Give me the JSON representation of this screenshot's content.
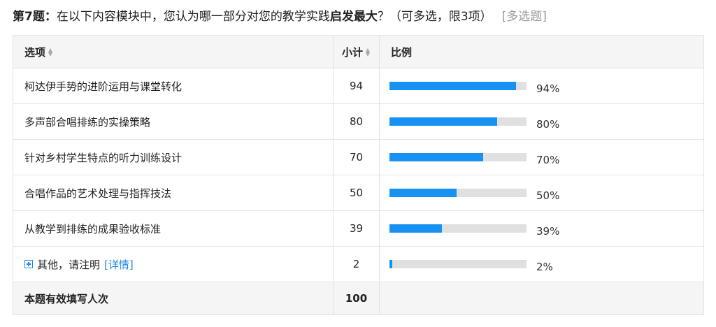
{
  "question": {
    "number": "第7题：",
    "text_before": "在以下内容模块中，您认为哪一部分对您的教学实践",
    "text_bold": "启发最大",
    "text_after": "？（可多选，限3项）",
    "type_tag": "[多选题]"
  },
  "table": {
    "headers": {
      "option": "选项",
      "count": "小计",
      "ratio": "比例"
    },
    "rows": [
      {
        "label": "柯达伊手势的进阶运用与课堂转化",
        "count": "94",
        "percent_label": "94%",
        "percent": 94
      },
      {
        "label": "多声部合唱排练的实操策略",
        "count": "80",
        "percent_label": "80%",
        "percent": 80
      },
      {
        "label": "针对乡村学生特点的听力训练设计",
        "count": "70",
        "percent_label": "70%",
        "percent": 70
      },
      {
        "label": "合唱作品的艺术处理与指挥技法",
        "count": "50",
        "percent_label": "50%",
        "percent": 50
      },
      {
        "label": "从教学到排练的成果验收标准",
        "count": "39",
        "percent_label": "39%",
        "percent": 39
      }
    ],
    "other_row": {
      "label": "其他，请注明",
      "link": "[详情]",
      "count": "2",
      "percent_label": "2%",
      "percent": 2
    },
    "footer": {
      "label": "本题有效填写人次",
      "count": "100"
    }
  },
  "colors": {
    "bar_fill": "#1791f2",
    "bar_track": "#e0e0e0",
    "link": "#1e88e5"
  }
}
